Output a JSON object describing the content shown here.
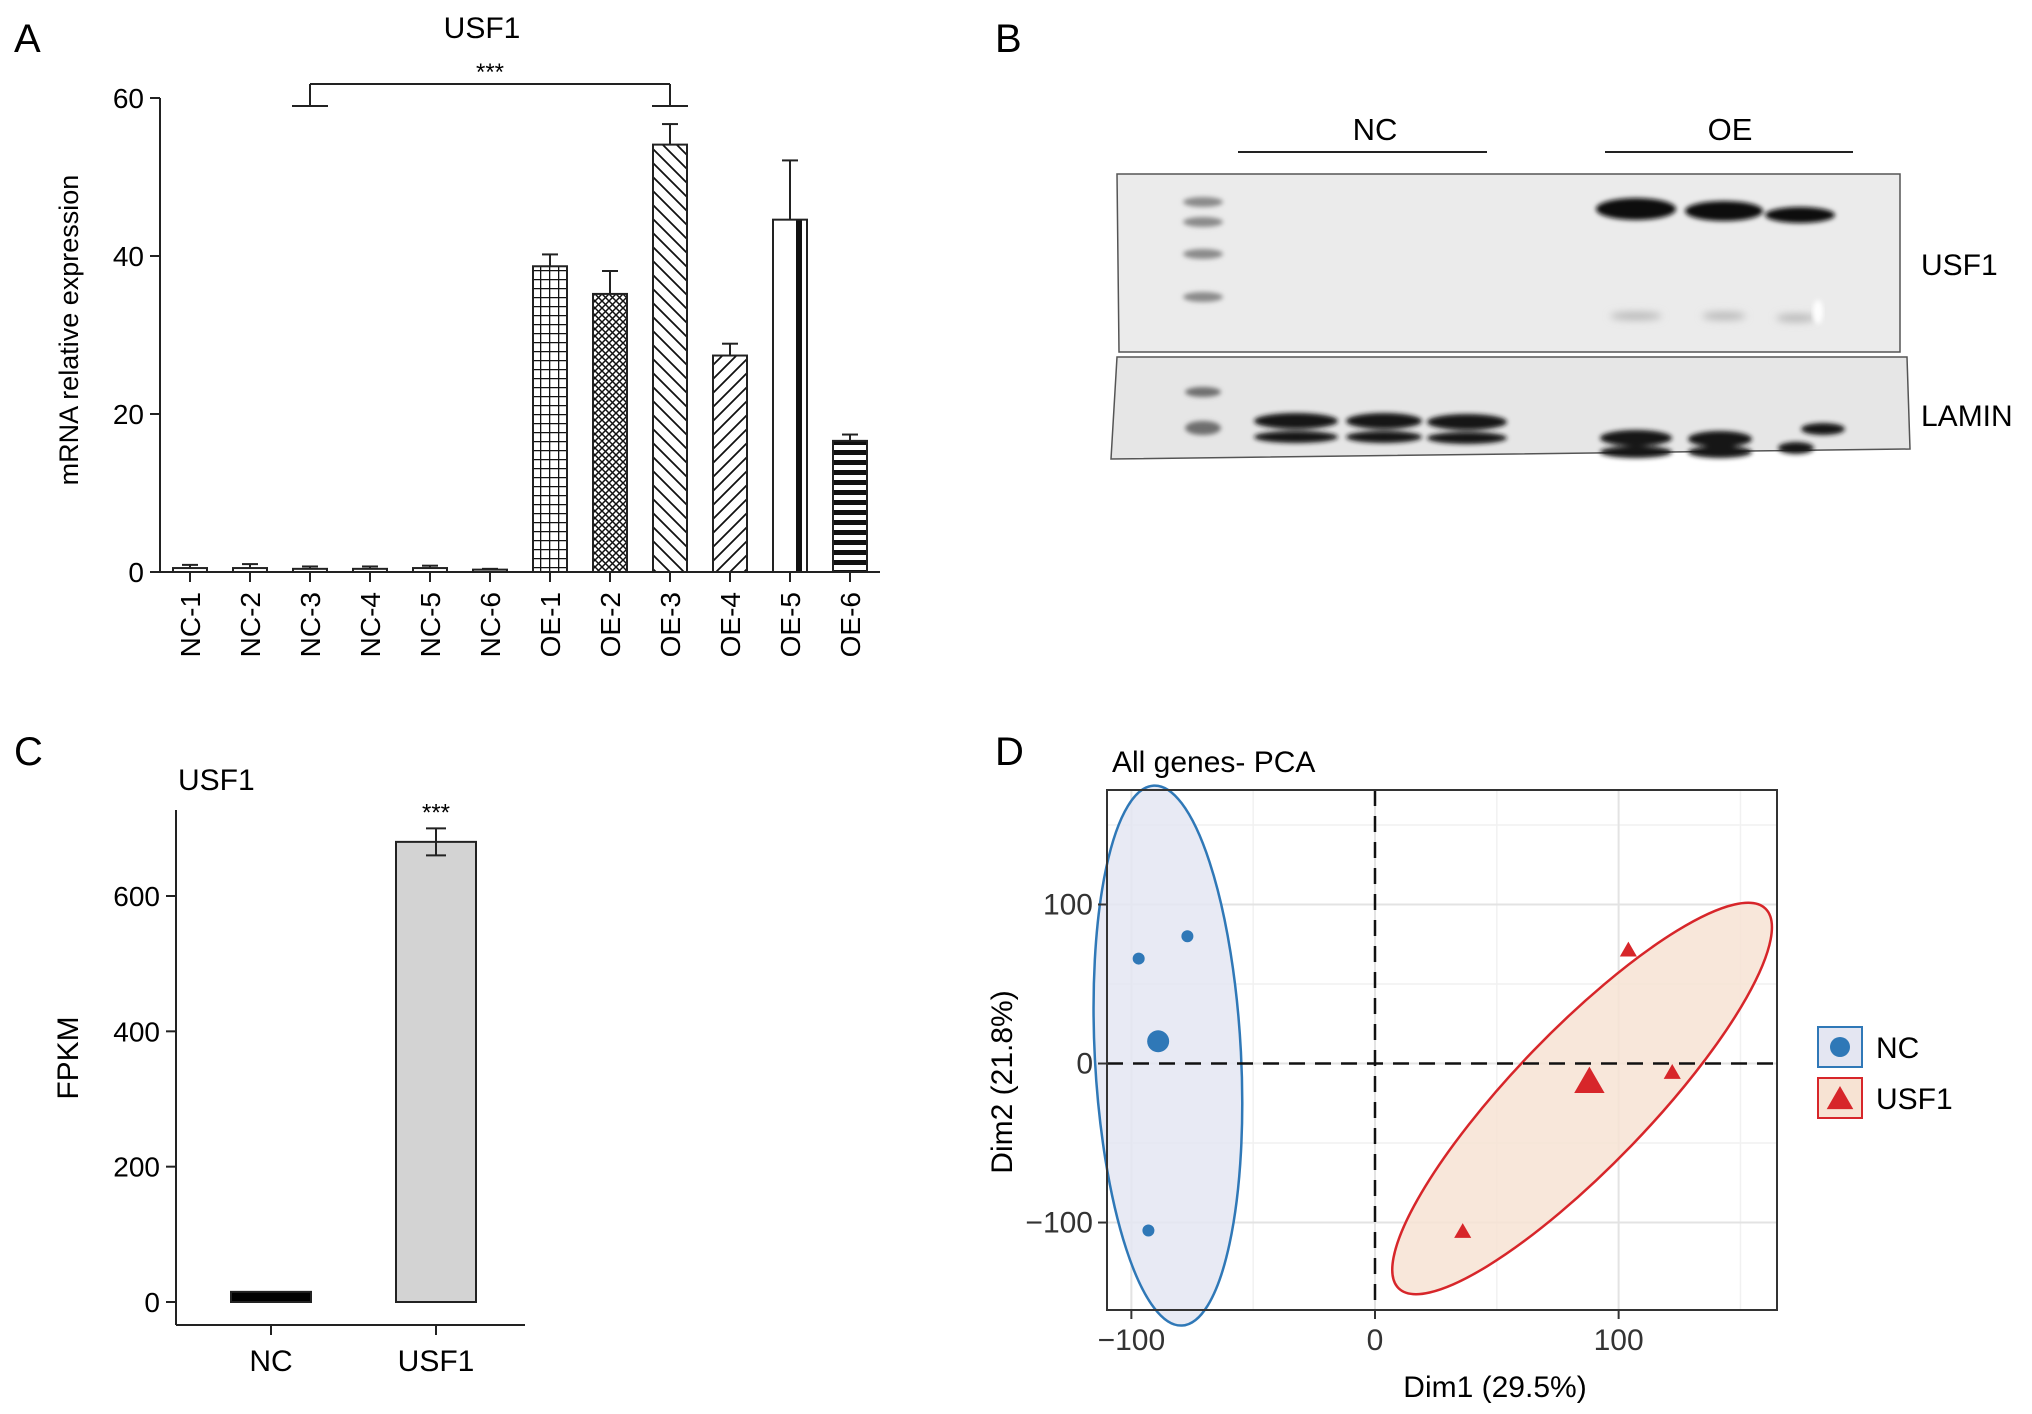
{
  "panels": {
    "a": "A",
    "b": "B",
    "c": "C",
    "d": "D"
  },
  "significance": "***",
  "blot": {
    "group_labels": [
      "NC",
      "OE"
    ],
    "row_labels": [
      "USF1",
      "LAMIN"
    ]
  },
  "chart_data": [
    {
      "id": "A",
      "type": "bar",
      "title": "USF1",
      "ylabel": "mRNA relative expression",
      "ylim": [
        0,
        60
      ],
      "yticks": [
        0,
        20,
        40,
        60
      ],
      "categories": [
        "NC-1",
        "NC-2",
        "NC-3",
        "NC-4",
        "NC-5",
        "NC-6",
        "OE-1",
        "OE-2",
        "OE-3",
        "OE-4",
        "OE-5",
        "OE-6"
      ],
      "values": [
        0.5,
        0.5,
        0.4,
        0.4,
        0.5,
        0.3,
        38.7,
        35.2,
        54.1,
        27.4,
        44.6,
        16.6
      ],
      "errors": [
        0.4,
        0.5,
        0.3,
        0.3,
        0.3,
        0.1,
        1.5,
        2.9,
        2.6,
        1.5,
        7.5,
        0.8
      ],
      "patterns": [
        "plain",
        "plain",
        "plain",
        "plain",
        "plain",
        "plain",
        "grid",
        "crosshatch",
        "diag-back",
        "diag-fwd",
        "vertical",
        "horizontal"
      ],
      "comparison": {
        "from": "NC-3",
        "to": "OE-3",
        "label": "***"
      }
    },
    {
      "id": "C",
      "type": "bar",
      "title": "USF1",
      "ylabel": "FPKM",
      "ylim": [
        0,
        700
      ],
      "yticks": [
        0,
        200,
        400,
        600
      ],
      "categories": [
        "NC",
        "USF1"
      ],
      "values": [
        15,
        680
      ],
      "errors": [
        3,
        20
      ],
      "colors": [
        "#000000",
        "#d3d3d3"
      ],
      "annotation": "***"
    },
    {
      "id": "D",
      "type": "scatter",
      "title": "All genes- PCA",
      "xlabel": "Dim1 (29.5%)",
      "ylabel": "Dim2 (21.8%)",
      "xlim": [
        -110,
        165
      ],
      "ylim": [
        -155,
        172
      ],
      "xticks": [
        -100,
        0,
        100
      ],
      "yticks": [
        -100,
        0,
        100
      ],
      "grid": true,
      "legend_position": "right",
      "series": [
        {
          "name": "NC",
          "color": "#2f78b7",
          "fill": "#e4e6f2",
          "marker": "circle",
          "points": [
            [
              -97,
              66
            ],
            [
              -77,
              80
            ],
            [
              -93,
              -105
            ]
          ],
          "centroid": [
            -89,
            14
          ],
          "ellipse": {
            "cx": -85,
            "cy": 5,
            "rx": 30,
            "ry": 170,
            "angle": -3
          }
        },
        {
          "name": "USF1",
          "color": "#d7262a",
          "fill": "#f7e3d3",
          "marker": "triangle",
          "points": [
            [
              104,
              71
            ],
            [
              122,
              -6
            ],
            [
              36,
              -106
            ]
          ],
          "centroid": [
            88,
            -12
          ],
          "ellipse": {
            "cx": 85,
            "cy": -22,
            "rx": 28,
            "ry": 166,
            "angle": 44
          }
        }
      ]
    }
  ]
}
